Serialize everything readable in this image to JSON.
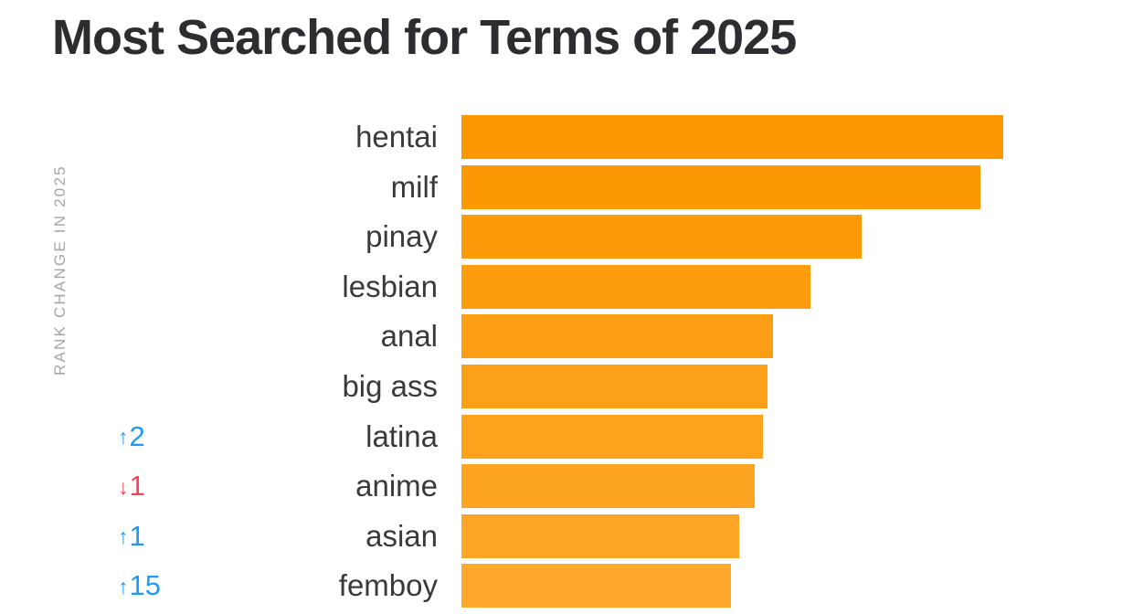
{
  "page": {
    "background": "#ffffff"
  },
  "header": {
    "title": "Most Searched for Terms of 2025",
    "title_color": "#2d2d31"
  },
  "axis": {
    "ylabel": "RANK CHANGE IN 2025",
    "ylabel_color": "#a6a6a6"
  },
  "icons": {
    "up_arrow": "↑",
    "down_arrow": "↓"
  },
  "colors": {
    "rank_up": "#2499f2",
    "rank_down": "#f94056",
    "category_label": "#3a3a3a",
    "bar_gradient_top": "#fb9700",
    "bar_gradient_bottom": "#fda72c"
  },
  "chart_data": {
    "type": "bar",
    "orientation": "horizontal",
    "title": "Most Searched for Terms of 2025",
    "ylabel": "RANK CHANGE IN 2025",
    "xlabel": "",
    "grid": false,
    "legend": false,
    "axis_values_shown": false,
    "value_unit": "relative bar length in px (no numeric axis shown in image)",
    "categories": [
      "hentai",
      "milf",
      "pinay",
      "lesbian",
      "anal",
      "big ass",
      "latina",
      "anime",
      "asian",
      "femboy"
    ],
    "values": [
      593,
      568,
      438,
      382,
      341,
      335,
      330,
      321,
      304,
      295
    ],
    "bar_colors": [
      "#fb9700",
      "#fb9905",
      "#fb9b0a",
      "#fc9c0f",
      "#fc9e14",
      "#fca018",
      "#fca21d",
      "#fda322",
      "#fda527",
      "#fda72c"
    ],
    "rank_changes": [
      null,
      null,
      null,
      null,
      null,
      null,
      {
        "direction": "up",
        "amount": "2",
        "color": "#2499f2"
      },
      {
        "direction": "down",
        "amount": "1",
        "color": "#f94056"
      },
      {
        "direction": "up",
        "amount": "1",
        "color": "#2499f2"
      },
      {
        "direction": "up",
        "amount": "15",
        "color": "#2499f2"
      }
    ]
  }
}
